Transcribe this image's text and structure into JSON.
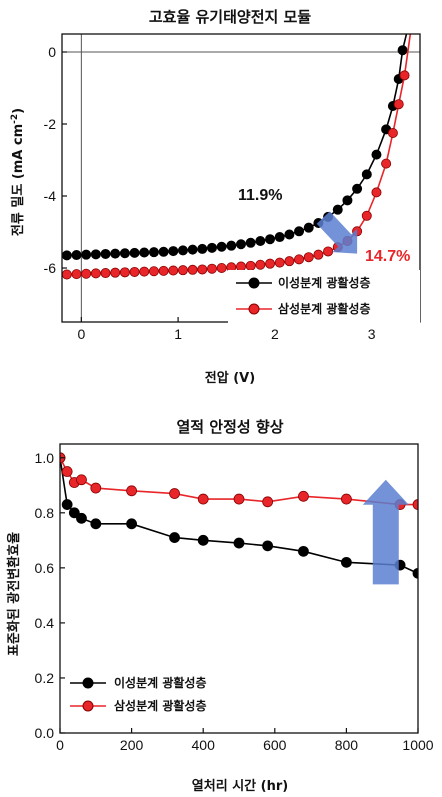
{
  "chart_data": [
    {
      "type": "line",
      "title": "고효율 유기태양전지 모듈",
      "xlabel": "전압 (V)",
      "ylabel": "전류 밀도 (mA cm",
      "ylabel_sup": "-2",
      "ylabel_close": ")",
      "xlim": [
        -0.2,
        3.5
      ],
      "ylim": [
        -7.5,
        0.5
      ],
      "xticks": [
        "0",
        "1",
        "2",
        "3"
      ],
      "xtick_values": [
        0,
        1,
        2,
        3
      ],
      "yticks": [
        "0",
        "-2",
        "-4",
        "-6"
      ],
      "ytick_values": [
        0,
        -2,
        -4,
        -6
      ],
      "annotations": [
        {
          "text": "11.9%",
          "color": "#111111"
        },
        {
          "text": "14.7%",
          "color": "#e8262a"
        }
      ],
      "arrow": {
        "color": "#5b7fd0",
        "from": [
          2.5,
          -4.6
        ],
        "to": [
          2.85,
          -5.6
        ]
      },
      "series": [
        {
          "name": "이성분계 광활성층",
          "color": "#000000",
          "x": [
            -0.15,
            -0.05,
            0.05,
            0.15,
            0.25,
            0.35,
            0.45,
            0.55,
            0.65,
            0.75,
            0.85,
            0.95,
            1.05,
            1.15,
            1.25,
            1.35,
            1.45,
            1.55,
            1.65,
            1.75,
            1.85,
            1.95,
            2.05,
            2.15,
            2.25,
            2.35,
            2.45,
            2.55,
            2.65,
            2.75,
            2.85,
            2.95,
            3.05,
            3.15,
            3.22,
            3.28,
            3.32,
            3.36
          ],
          "y": [
            -5.65,
            -5.64,
            -5.63,
            -5.62,
            -5.61,
            -5.6,
            -5.59,
            -5.58,
            -5.57,
            -5.56,
            -5.55,
            -5.53,
            -5.51,
            -5.49,
            -5.47,
            -5.44,
            -5.41,
            -5.38,
            -5.34,
            -5.3,
            -5.25,
            -5.2,
            -5.14,
            -5.07,
            -4.98,
            -4.88,
            -4.75,
            -4.58,
            -4.38,
            -4.12,
            -3.8,
            -3.4,
            -2.85,
            -2.15,
            -1.5,
            -0.75,
            0.05,
            0.5
          ]
        },
        {
          "name": "삼성분계 광활성층",
          "color": "#e8262a",
          "x": [
            -0.15,
            -0.05,
            0.05,
            0.15,
            0.25,
            0.35,
            0.45,
            0.55,
            0.65,
            0.75,
            0.85,
            0.95,
            1.05,
            1.15,
            1.25,
            1.35,
            1.45,
            1.55,
            1.65,
            1.75,
            1.85,
            1.95,
            2.05,
            2.15,
            2.25,
            2.35,
            2.45,
            2.55,
            2.65,
            2.75,
            2.85,
            2.95,
            3.05,
            3.15,
            3.22,
            3.28,
            3.34,
            3.4
          ],
          "y": [
            -6.18,
            -6.17,
            -6.16,
            -6.15,
            -6.14,
            -6.13,
            -6.12,
            -6.11,
            -6.1,
            -6.09,
            -6.08,
            -6.07,
            -6.06,
            -6.05,
            -6.04,
            -6.02,
            -6.0,
            -5.98,
            -5.96,
            -5.94,
            -5.91,
            -5.88,
            -5.85,
            -5.81,
            -5.76,
            -5.7,
            -5.63,
            -5.54,
            -5.42,
            -5.25,
            -4.98,
            -4.55,
            -3.9,
            -3.1,
            -2.25,
            -1.45,
            -0.65,
            0.5
          ]
        }
      ]
    },
    {
      "type": "line",
      "title": "열적 안정성 향상",
      "xlabel": "열처리 시간 (hr)",
      "ylabel": "표준화된 광전변환효율",
      "xlim": [
        0,
        1000
      ],
      "ylim": [
        0,
        1.05
      ],
      "xticks": [
        "0",
        "200",
        "400",
        "600",
        "800",
        "1000"
      ],
      "xtick_values": [
        0,
        200,
        400,
        600,
        800,
        1000
      ],
      "yticks": [
        "0.0",
        "0.2",
        "0.4",
        "0.6",
        "0.8",
        "1.0"
      ],
      "ytick_values": [
        0,
        0.2,
        0.4,
        0.6,
        0.8,
        1.0
      ],
      "arrow": {
        "color": "#5b7fd0",
        "from": [
          910,
          0.54
        ],
        "to": [
          910,
          0.92
        ]
      },
      "series": [
        {
          "name": "이성분계 광활성층",
          "color": "#000000",
          "x": [
            0,
            20,
            40,
            60,
            100,
            200,
            320,
            400,
            500,
            580,
            680,
            800,
            950,
            1000
          ],
          "y": [
            1.0,
            0.83,
            0.8,
            0.78,
            0.76,
            0.76,
            0.71,
            0.7,
            0.69,
            0.68,
            0.66,
            0.62,
            0.61,
            0.58
          ]
        },
        {
          "name": "삼성분계 광활성층",
          "color": "#e8262a",
          "x": [
            0,
            20,
            40,
            60,
            100,
            200,
            320,
            400,
            500,
            580,
            680,
            800,
            950,
            1000
          ],
          "y": [
            1.0,
            0.95,
            0.91,
            0.92,
            0.89,
            0.88,
            0.87,
            0.85,
            0.85,
            0.84,
            0.86,
            0.85,
            0.83,
            0.83
          ]
        }
      ]
    }
  ]
}
